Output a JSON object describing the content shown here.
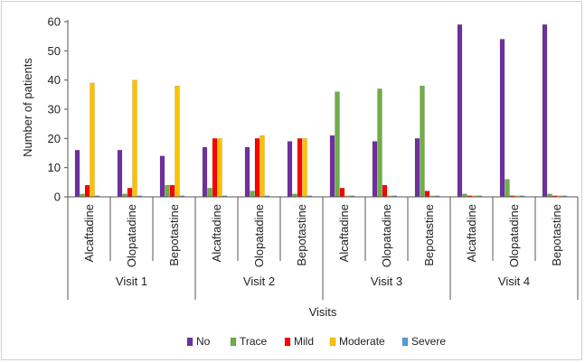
{
  "chart_data": {
    "type": "bar",
    "xlabel": "Visits",
    "ylabel": "Number of patients",
    "ylim": [
      0,
      60
    ],
    "yticks": [
      0,
      10,
      20,
      30,
      40,
      50,
      60
    ],
    "grid": false,
    "legend_position": "bottom",
    "groups": [
      {
        "label": "Visit 1",
        "categories": [
          "Alcaftadine",
          "Olopatadine",
          "Bepotastine"
        ]
      },
      {
        "label": "Visit 2",
        "categories": [
          "Alcaftadine",
          "Olopatadine",
          "Bepotastine"
        ]
      },
      {
        "label": "Visit 3",
        "categories": [
          "Alcaftadine",
          "Olopatadine",
          "Bepotastine"
        ]
      },
      {
        "label": "Visit 4",
        "categories": [
          "Alcaftadine",
          "Olopatadine",
          "Bepotastine"
        ]
      }
    ],
    "series": [
      {
        "name": "No",
        "color": "#7030a0",
        "values": [
          16,
          16,
          14,
          17,
          17,
          19,
          21,
          19,
          20,
          59,
          54,
          59
        ]
      },
      {
        "name": "Trace",
        "color": "#70ad47",
        "values": [
          1,
          1,
          4,
          3,
          2,
          1,
          36,
          37,
          38,
          1,
          6,
          1
        ]
      },
      {
        "name": "Mild",
        "color": "#ff0000",
        "values": [
          4,
          3,
          4,
          20,
          20,
          20,
          3,
          4,
          2,
          0,
          0,
          0
        ]
      },
      {
        "name": "Moderate",
        "color": "#ffc000",
        "values": [
          39,
          40,
          38,
          20,
          21,
          20,
          0,
          0,
          0,
          0,
          0,
          0
        ]
      },
      {
        "name": "Severe",
        "color": "#5b9bd5",
        "values": [
          0,
          0,
          0,
          0,
          0,
          0,
          0,
          0,
          0,
          0,
          0,
          0
        ]
      }
    ]
  }
}
